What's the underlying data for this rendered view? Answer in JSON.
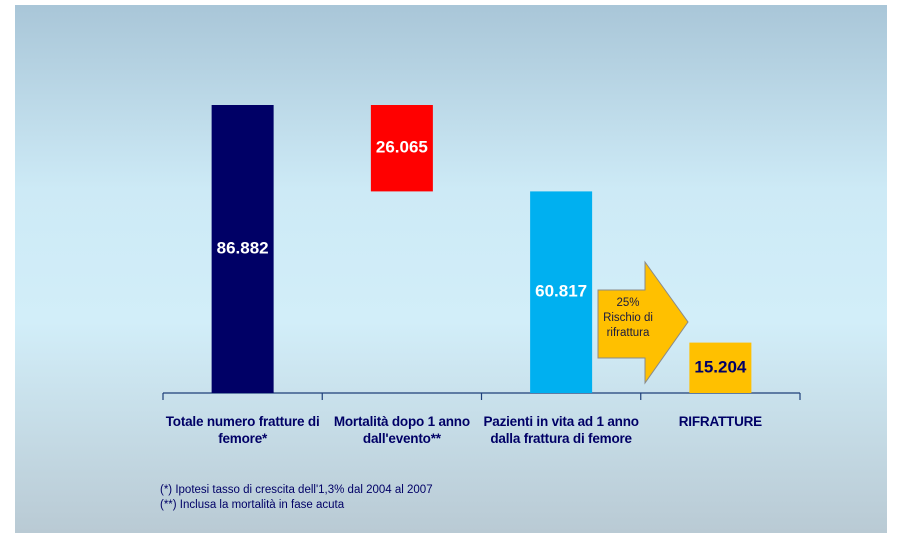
{
  "chart_data": {
    "type": "waterfall",
    "categories": [
      "Totale numero fratture di femore*",
      "Mortalità dopo 1 anno dall'evento**",
      "Pazienti in vita ad 1 anno dalla frattura di femore",
      "RIFRATTURE"
    ],
    "values": [
      86882,
      26065,
      60817,
      15204
    ],
    "value_labels": [
      "86.882",
      "26.065",
      "60.817",
      "15.204"
    ],
    "measures": [
      "absolute",
      "decrease",
      "absolute",
      "absolute"
    ],
    "colors": [
      "#000066",
      "#ff0000",
      "#00b0f0",
      "#ffc000"
    ],
    "label_colors": [
      "#ffffff",
      "#ffffff",
      "#ffffff",
      "#000066"
    ],
    "annotation": "25%\nRischio di\nrifrattura",
    "footnotes": [
      "(*) Ipotesi tasso di crescita dell'1,3% dal 2004 al 2007",
      "(**) Inclusa la mortalità in fase acuta"
    ]
  }
}
